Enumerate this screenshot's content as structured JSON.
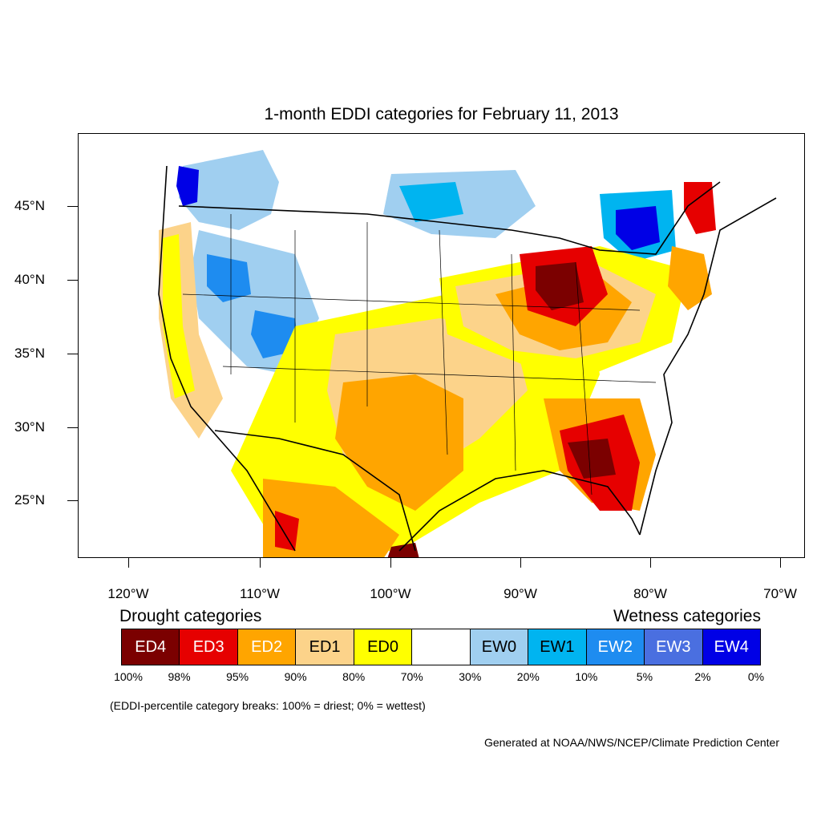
{
  "title": "1-month EDDI categories for February 11, 2013",
  "lat_labels": [
    "45°N",
    "40°N",
    "35°N",
    "30°N",
    "25°N"
  ],
  "lon_labels": [
    "120°W",
    "110°W",
    "100°W",
    "90°W",
    "80°W",
    "70°W"
  ],
  "drought_heading": "Drought categories",
  "wetness_heading": "Wetness categories",
  "legend": [
    {
      "label": "ED4",
      "color": "#7b0000",
      "text_color": "#ffffff"
    },
    {
      "label": "ED3",
      "color": "#e60000",
      "text_color": "#ffffff"
    },
    {
      "label": "ED2",
      "color": "#ffa500",
      "text_color": "#ffffff"
    },
    {
      "label": "ED1",
      "color": "#fcd38a",
      "text_color": "#000000"
    },
    {
      "label": "ED0",
      "color": "#ffff00",
      "text_color": "#000000"
    },
    {
      "label": "",
      "color": "#ffffff",
      "text_color": "#000000"
    },
    {
      "label": "EW0",
      "color": "#a0cff0",
      "text_color": "#000000"
    },
    {
      "label": "EW1",
      "color": "#00b4f0",
      "text_color": "#000000"
    },
    {
      "label": "EW2",
      "color": "#1e8cf0",
      "text_color": "#ffffff"
    },
    {
      "label": "EW3",
      "color": "#4a6fe0",
      "text_color": "#ffffff"
    },
    {
      "label": "EW4",
      "color": "#0000e6",
      "text_color": "#ffffff"
    }
  ],
  "percent_breaks": [
    "100%",
    "98%",
    "95%",
    "90%",
    "80%",
    "70%",
    "30%",
    "20%",
    "10%",
    "5%",
    "2%",
    "0%"
  ],
  "note": "(EDDI-percentile category breaks: 100% = driest; 0% = wettest)",
  "credit": "Generated at NOAA/NWS/NCEP/Climate Prediction Center"
}
